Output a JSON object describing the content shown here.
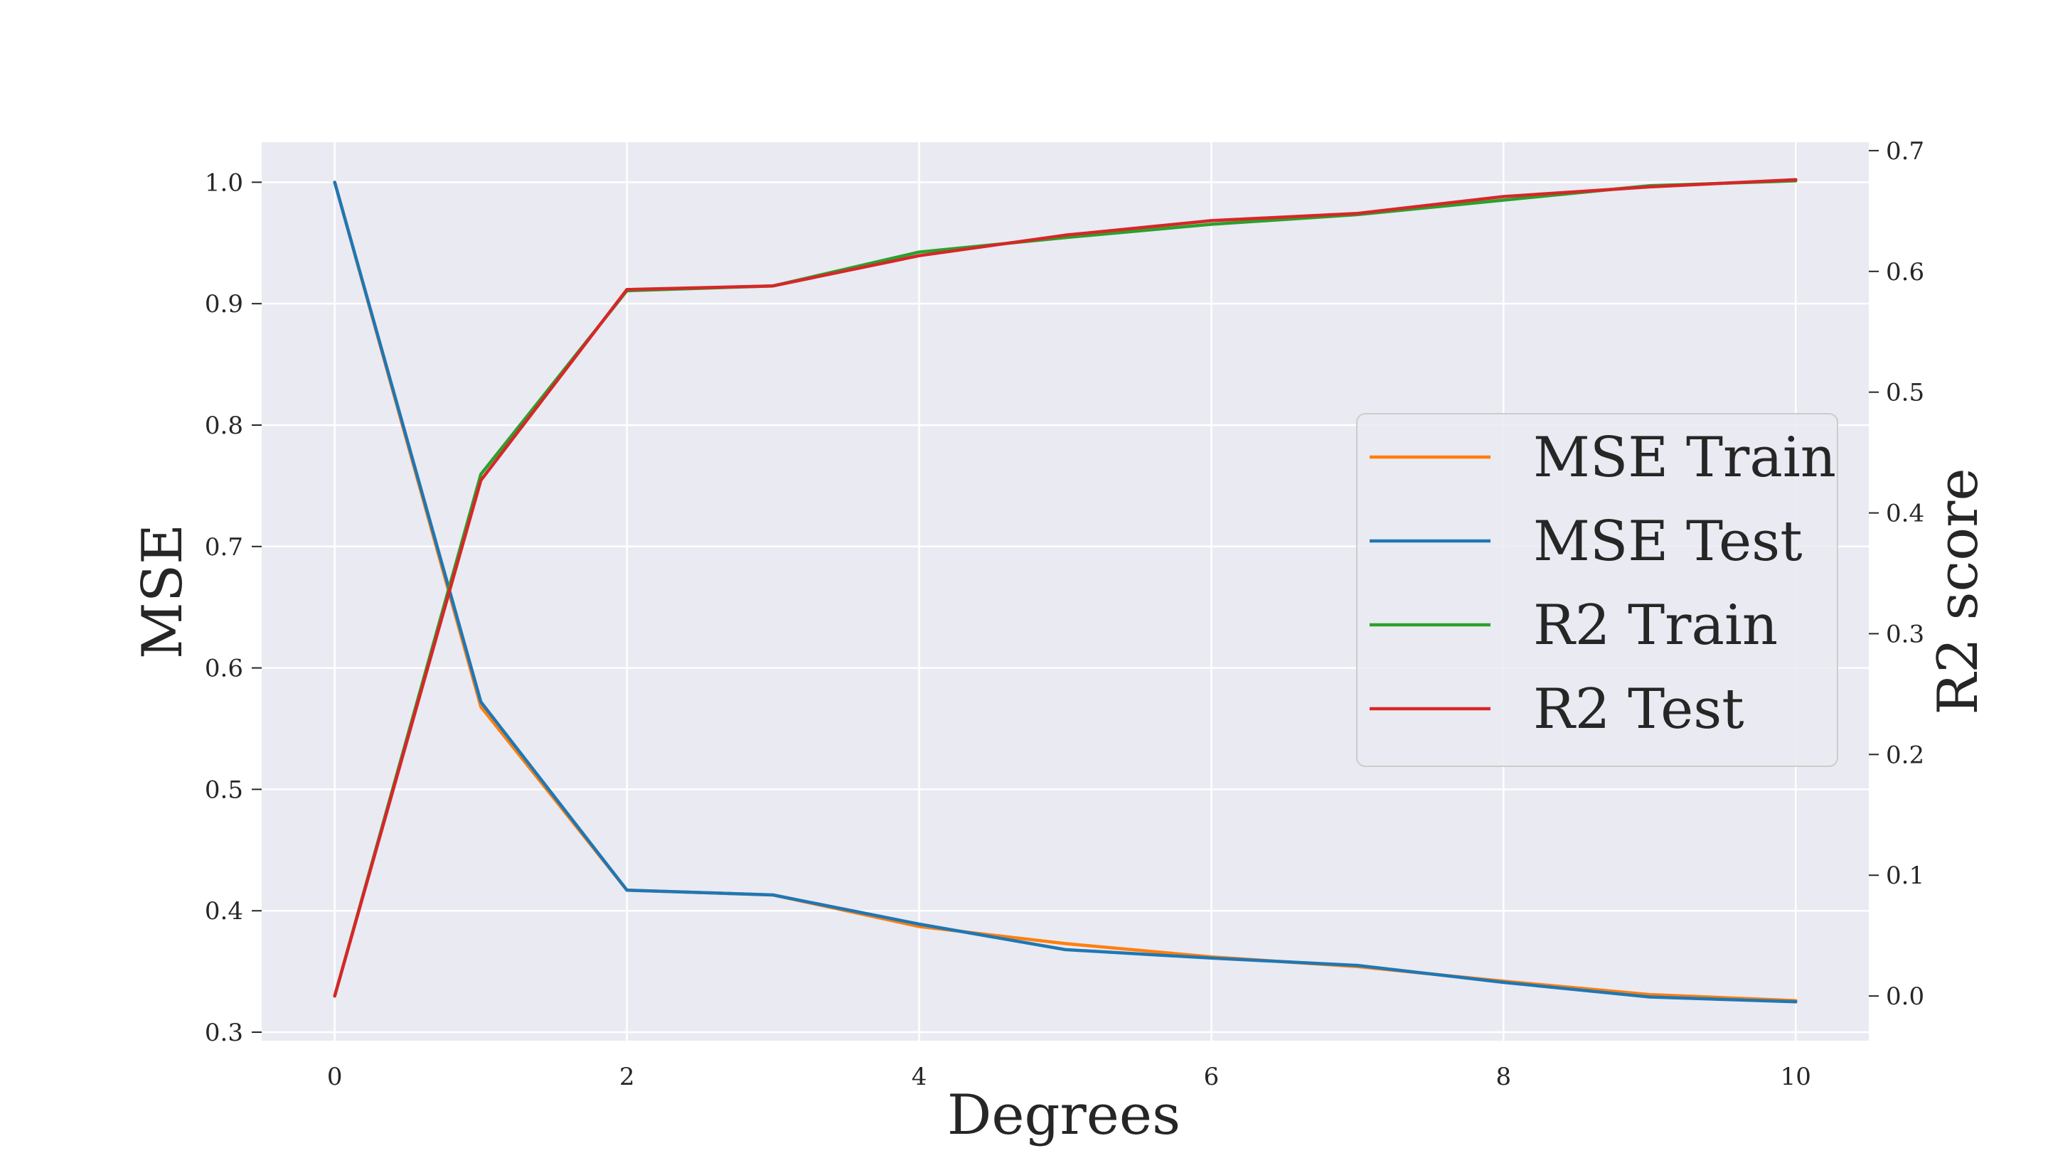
{
  "chart_data": {
    "type": "line",
    "title": "",
    "xlabel": "Degrees",
    "ylabel": "MSE",
    "y2label": "R2 score",
    "x": [
      0,
      1,
      2,
      3,
      4,
      5,
      6,
      7,
      8,
      9,
      10
    ],
    "xlim": [
      -0.5,
      10.5
    ],
    "ylim": [
      0.293,
      1.033
    ],
    "y2lim": [
      -0.037,
      0.707
    ],
    "xticks": [
      "0",
      "2",
      "4",
      "6",
      "8",
      "10"
    ],
    "yticks": [
      "0.3",
      "0.4",
      "0.5",
      "0.6",
      "0.7",
      "0.8",
      "0.9",
      "1.0"
    ],
    "y2ticks": [
      "0.0",
      "0.1",
      "0.2",
      "0.3",
      "0.4",
      "0.5",
      "0.6",
      "0.7"
    ],
    "grid": true,
    "legend_position": "center-right",
    "series": [
      {
        "name": "MSE Train",
        "axis": "left",
        "color": "#ff7f0e",
        "values": [
          1.0,
          0.568,
          0.417,
          0.413,
          0.387,
          0.373,
          0.362,
          0.354,
          0.342,
          0.331,
          0.326
        ]
      },
      {
        "name": "MSE Test",
        "axis": "left",
        "color": "#1f77b4",
        "values": [
          1.0,
          0.572,
          0.417,
          0.413,
          0.389,
          0.368,
          0.361,
          0.355,
          0.341,
          0.329,
          0.325
        ]
      },
      {
        "name": "R2 Train",
        "axis": "right",
        "color": "#2ca02c",
        "values": [
          0.0,
          0.432,
          0.584,
          0.588,
          0.616,
          0.628,
          0.639,
          0.647,
          0.659,
          0.671,
          0.675
        ]
      },
      {
        "name": "R2 Test",
        "axis": "right",
        "color": "#d62728",
        "values": [
          0.0,
          0.427,
          0.585,
          0.588,
          0.613,
          0.63,
          0.642,
          0.648,
          0.662,
          0.67,
          0.676
        ]
      }
    ]
  },
  "colors": {
    "plot_background": "#eaeaf2",
    "grid": "#ffffff",
    "text": "#262626"
  }
}
